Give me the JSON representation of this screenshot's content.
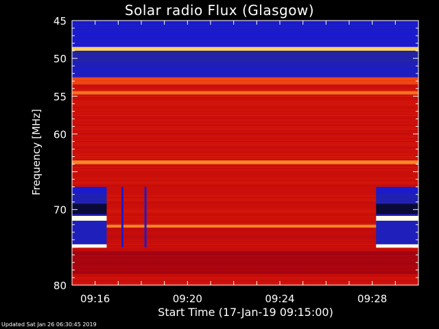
{
  "chart_data": {
    "type": "heatmap",
    "title": "Solar radio Flux (Glasgow)",
    "ylabel": "Frequency [MHz]",
    "xlabel": "Start Time (17-Jan-19 09:15:00)",
    "ylim": [
      45,
      80
    ],
    "y_reversed": true,
    "y_ticks": [
      45,
      50,
      55,
      60,
      70,
      80
    ],
    "x_range_minutes": [
      "09:15:00",
      "09:30:00"
    ],
    "x_ticks": [
      "09:16",
      "09:20",
      "09:24",
      "09:28"
    ],
    "colormap": "blue-black-red-yellow-white",
    "bands": [
      {
        "from": 45.0,
        "to": 48.5,
        "level": 0.05
      },
      {
        "from": 48.5,
        "to": 49.0,
        "level": 0.9
      },
      {
        "from": 49.0,
        "to": 50.5,
        "level": 0.12
      },
      {
        "from": 50.5,
        "to": 52.5,
        "level": 0.08
      },
      {
        "from": 52.5,
        "to": 53.5,
        "level": 0.75
      },
      {
        "from": 53.5,
        "to": 54.3,
        "level": 0.6
      },
      {
        "from": 54.3,
        "to": 54.8,
        "level": 0.78
      },
      {
        "from": 54.8,
        "to": 63.5,
        "level": 0.6
      },
      {
        "from": 63.5,
        "to": 64.0,
        "level": 0.82
      },
      {
        "from": 64.0,
        "to": 72.0,
        "level": 0.6
      },
      {
        "from": 72.0,
        "to": 72.4,
        "level": 0.82
      },
      {
        "from": 72.4,
        "to": 75.5,
        "level": 0.58
      },
      {
        "from": 75.5,
        "to": 78.5,
        "level": 0.5
      },
      {
        "from": 78.5,
        "to": 80.0,
        "level": 0.6
      }
    ],
    "gaps": [
      {
        "start": "09:15:00",
        "end": "09:16:30",
        "from": 67.0,
        "to": 75.0
      },
      {
        "start": "09:28:10",
        "end": "09:30:00",
        "from": 67.0,
        "to": 75.0
      }
    ],
    "dropouts": [
      "09:17:10",
      "09:18:10"
    ],
    "footer": "Updated Sat Jan 26 06:30:45 2019"
  }
}
